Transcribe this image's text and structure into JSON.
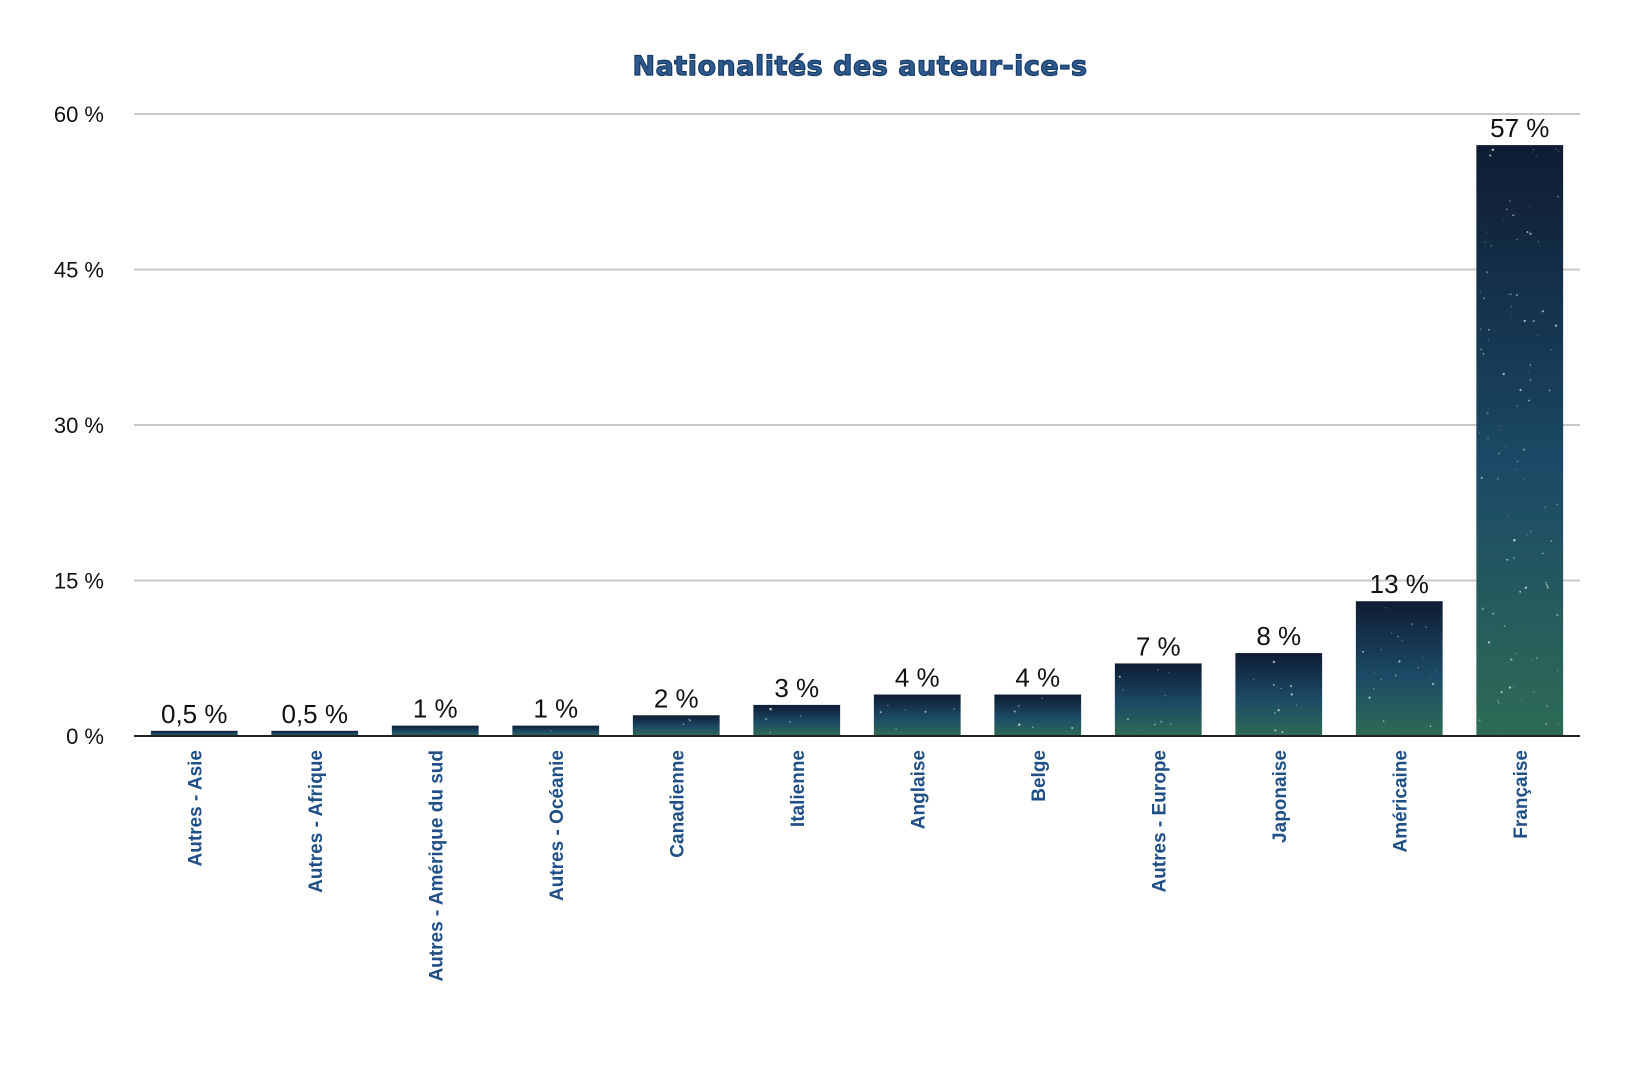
{
  "chart_data": {
    "type": "bar",
    "title": "Nationalités des auteur-ice-s",
    "categories": [
      "Autres - Asie",
      "Autres - Afrique",
      "Autres - Amérique du sud",
      "Autres - Océanie",
      "Canadienne",
      "Italienne",
      "Anglaise",
      "Belge",
      "Autres - Europe",
      "Japonaise",
      "Américaine",
      "Française"
    ],
    "values": [
      0.5,
      0.5,
      1,
      1,
      2,
      3,
      4,
      4,
      7,
      8,
      13,
      57
    ],
    "data_labels": [
      "0,5 %",
      "0,5 %",
      "1 %",
      "1 %",
      "2 %",
      "3 %",
      "4 %",
      "4 %",
      "7 %",
      "8 %",
      "13 %",
      "57 %"
    ],
    "xlabel": "",
    "ylabel": "",
    "ylim": [
      0,
      60
    ],
    "yticks": [
      0,
      15,
      30,
      45,
      60
    ],
    "ytick_labels": [
      "0 %",
      "15 %",
      "30 %",
      "45 %",
      "60 %"
    ],
    "grid": true,
    "legend": "none",
    "colors": {
      "title": "#2e5a8f",
      "tick_labels": "#1f4f86",
      "bar_top": "#0f1c33",
      "bar_mid": "#1b4a66",
      "bar_bottom": "#2e6b55",
      "grid": "#c8c8c8"
    }
  }
}
